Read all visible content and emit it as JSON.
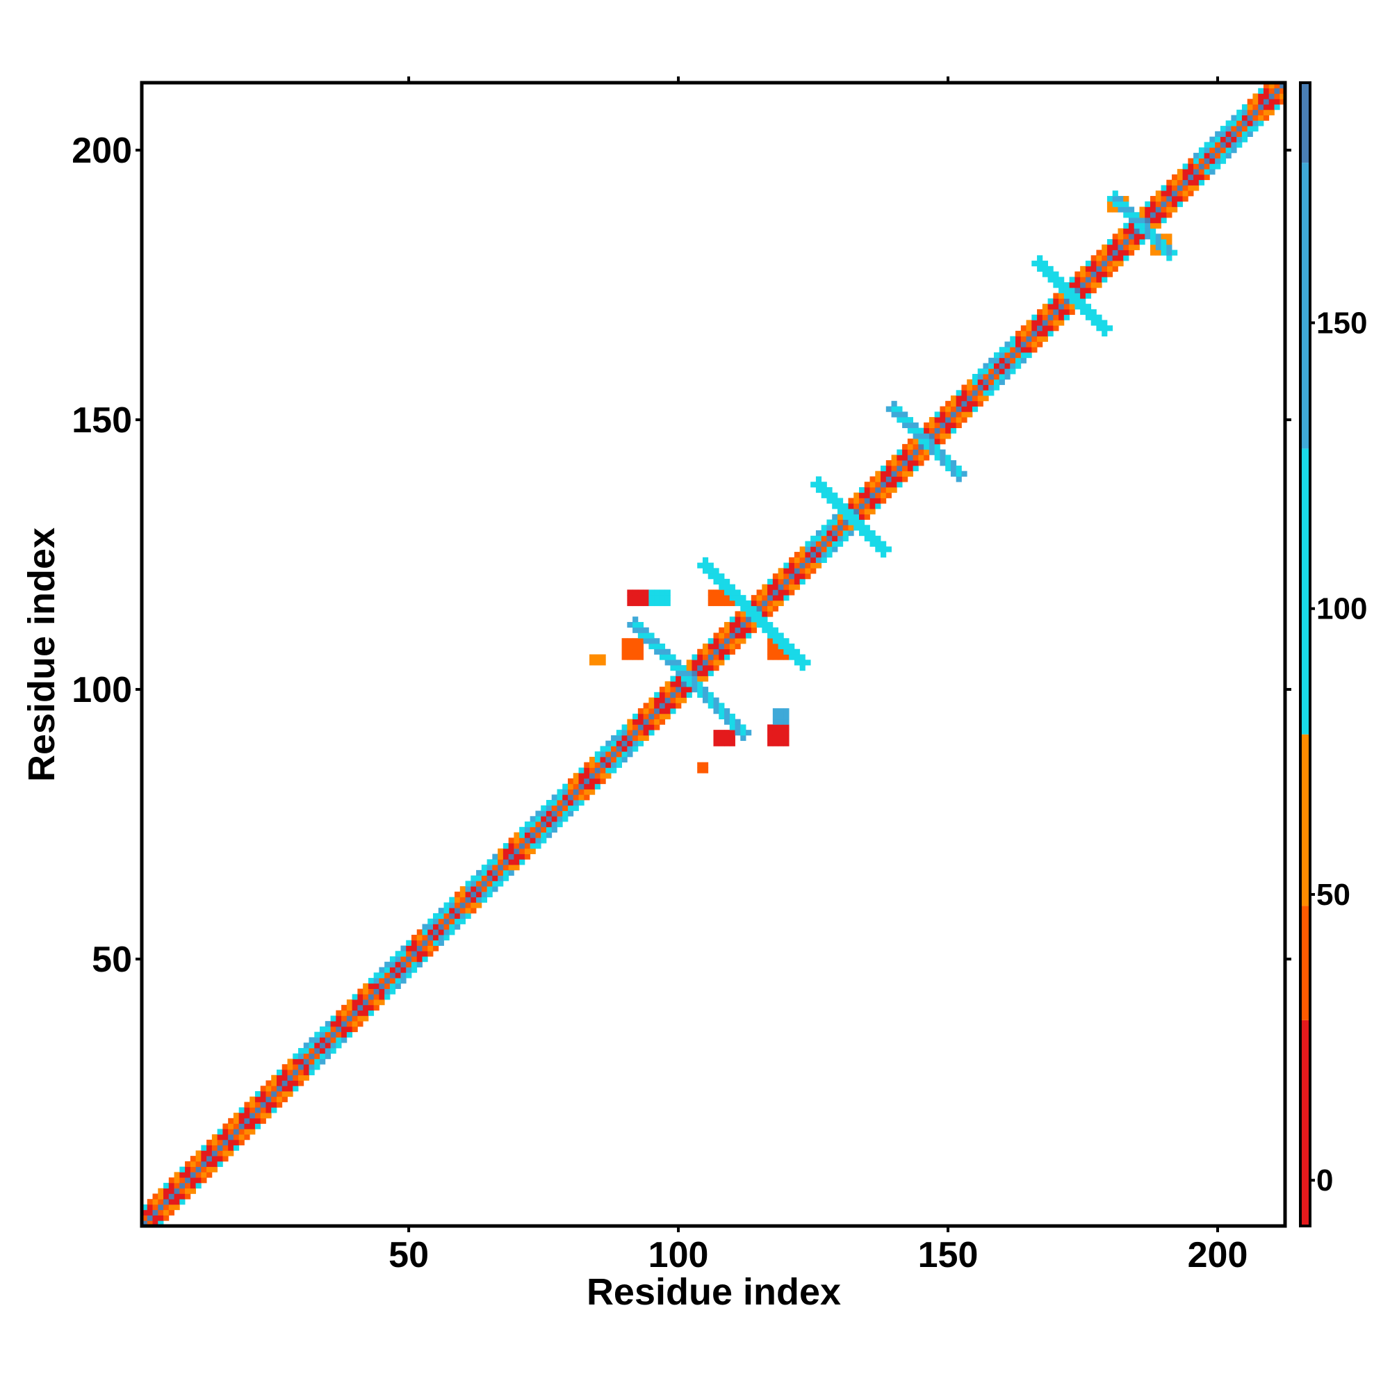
{
  "chart_data": {
    "type": "heatmap",
    "title": "",
    "xlabel": "Residue index",
    "ylabel": "Residue index",
    "xlim": [
      1,
      212
    ],
    "ylim": [
      1,
      212
    ],
    "x_ticks": [
      50,
      100,
      150,
      200
    ],
    "y_ticks": [
      50,
      100,
      150,
      200
    ],
    "colorbar": {
      "range": [
        -8,
        192
      ],
      "ticks": [
        0,
        50,
        100,
        150
      ],
      "bands": [
        {
          "from": -8,
          "to": 28,
          "color": "#e41a1c"
        },
        {
          "from": 28,
          "to": 48,
          "color": "#ff5a00"
        },
        {
          "from": 48,
          "to": 78,
          "color": "#ff8c00"
        },
        {
          "from": 78,
          "to": 128,
          "color": "#19d9e8"
        },
        {
          "from": 128,
          "to": 178,
          "color": "#3fa9d8"
        },
        {
          "from": 178,
          "to": 192,
          "color": "#4a7fb5"
        }
      ],
      "top_color": "#ffffff"
    },
    "diagonal": {
      "from": 1,
      "to": 212,
      "band_width": 3
    },
    "helices": [
      [
        30,
        35
      ],
      [
        44,
        49
      ],
      [
        53,
        58
      ],
      [
        61,
        66
      ],
      [
        71,
        79
      ],
      [
        85,
        90
      ],
      [
        124,
        129
      ],
      [
        155,
        162
      ],
      [
        196,
        205
      ]
    ],
    "contact_clusters": [
      {
        "center": [
          102,
          102
        ],
        "half_length": 10,
        "value": 140
      },
      {
        "center": [
          114,
          114
        ],
        "half_length": 9,
        "value": 115
      },
      {
        "center": [
          132,
          132
        ],
        "half_length": 6,
        "value": 120
      },
      {
        "center": [
          146,
          146
        ],
        "half_length": 6,
        "value": 150
      },
      {
        "center": [
          173,
          173
        ],
        "half_length": 6,
        "value": 120
      },
      {
        "center": [
          186,
          186
        ],
        "half_length": 5,
        "value": 150
      }
    ],
    "contact_blobs": [
      {
        "x": [
          91,
          94
        ],
        "y": [
          116,
          118
        ],
        "value": 20
      },
      {
        "x": [
          95,
          98
        ],
        "y": [
          116,
          118
        ],
        "value": 100
      },
      {
        "x": [
          90,
          93
        ],
        "y": [
          106,
          109
        ],
        "value": 45
      },
      {
        "x": [
          84,
          86
        ],
        "y": [
          105,
          106
        ],
        "value": 60
      },
      {
        "x": [
          107,
          110
        ],
        "y": [
          90,
          92
        ],
        "value": 20
      },
      {
        "x": [
          117,
          120
        ],
        "y": [
          90,
          93
        ],
        "value": 10
      },
      {
        "x": [
          118,
          120
        ],
        "y": [
          94,
          96
        ],
        "value": 140
      },
      {
        "x": [
          106,
          111
        ],
        "y": [
          116,
          118
        ],
        "value": 40
      },
      {
        "x": [
          117,
          120
        ],
        "y": [
          106,
          109
        ],
        "value": 40
      },
      {
        "x": [
          104,
          105
        ],
        "y": [
          85,
          86
        ],
        "value": 45
      },
      {
        "x": [
          180,
          183
        ],
        "y": [
          189,
          191
        ],
        "value": 50
      },
      {
        "x": [
          188,
          191
        ],
        "y": [
          181,
          184
        ],
        "value": 60
      }
    ]
  }
}
